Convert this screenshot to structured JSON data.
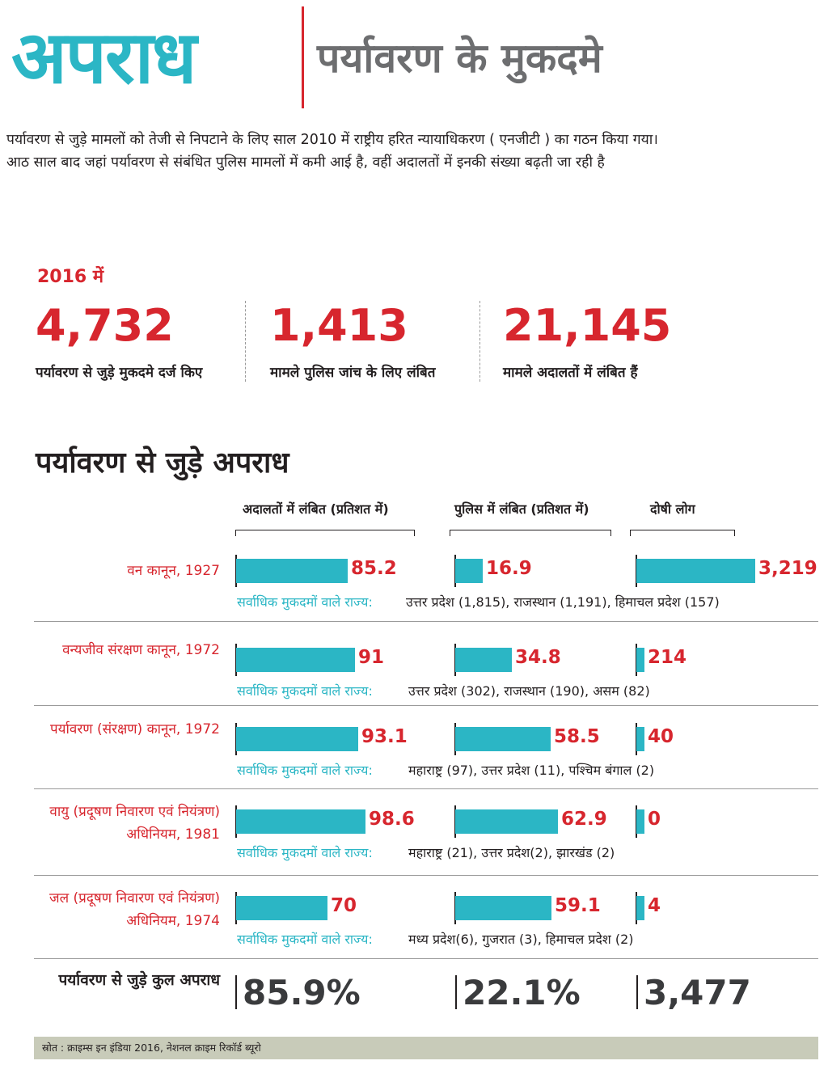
{
  "header": {
    "title": "अपराध",
    "subtitle": "पर्यावरण के मुकदमे"
  },
  "intro": {
    "line1": "पर्यावरण से जुड़े मामलों को तेजी से निपटाने के लिए साल 2010 में राष्ट्रीय हरित न्यायाधिकरण ( एनजीटी ) का गठन किया गया।",
    "line2": "आठ साल बाद जहां पर्यावरण से संबंधित पुलिस मामलों में कमी आई है, वहीं अदालतों में इनकी संख्या बढ़ती जा रही है"
  },
  "summary": {
    "year_label": "2016 में",
    "stats": [
      {
        "value": "4,732",
        "caption": "पर्यावरण से जुड़े मुकदमे दर्ज किए"
      },
      {
        "value": "1,413",
        "caption": "मामले पुलिस जांच के लिए लंबित"
      },
      {
        "value": "21,145",
        "caption": "मामले अदालतों में लंबित हैं"
      }
    ]
  },
  "chart_data": {
    "type": "bar",
    "title": "पर्यावरण से जुड़े अपराध",
    "columns": [
      "अदालतों में लंबित (प्रतिशत में)",
      "पुलिस में लंबित (प्रतिशत में)",
      "दोषी लोग"
    ],
    "states_label": "सर्वाधिक मुकदमों वाले राज्य:",
    "rows": [
      {
        "law": "वन कानून, 1927",
        "court": 85.2,
        "police": 16.9,
        "convicted": 3219,
        "court_label": "85.2",
        "police_label": "16.9",
        "convicted_label": "3,219",
        "states": "उत्तर प्रदेश (1,815),  राजस्थान (1,191),  हिमाचल प्रदेश (157)"
      },
      {
        "law": "वन्यजीव संरक्षण कानून, 1972",
        "court": 91,
        "police": 34.8,
        "convicted": 214,
        "court_label": "91",
        "police_label": "34.8",
        "convicted_label": "214",
        "states": "उत्तर प्रदेश (302), राजस्थान (190), असम (82)"
      },
      {
        "law": "पर्यावरण (संरक्षण) कानून, 1972",
        "court": 93.1,
        "police": 58.5,
        "convicted": 40,
        "court_label": "93.1",
        "police_label": "58.5",
        "convicted_label": "40",
        "states": "महाराष्ट्र (97), उत्तर प्रदेश (11), पश्चिम बंगाल (2)"
      },
      {
        "law": "वायु (प्रदूषण निवारण एवं नियंत्रण) अधिनियम, 1981",
        "court": 98.6,
        "police": 62.9,
        "convicted": 0,
        "court_label": "98.6",
        "police_label": "62.9",
        "convicted_label": "0",
        "states": "महाराष्ट्र (21), उत्तर प्रदेश(2), झारखंड (2)"
      },
      {
        "law": "जल (प्रदूषण निवारण एवं नियंत्रण) अधिनियम, 1974",
        "court": 70,
        "police": 59.1,
        "convicted": 4,
        "court_label": "70",
        "police_label": "59.1",
        "convicted_label": "4",
        "states": "मध्य प्रदेश(6), गुजरात (3), हिमाचल प्रदेश (2)"
      }
    ],
    "total": {
      "label": "पर्यावरण से जुड़े कुल अपराध",
      "court": "85.9%",
      "police": "22.1%",
      "convicted": "3,477"
    }
  },
  "source": "स्रोत : क्राइम्स इन इंडिया 2016, नेशनल क्राइम रिकॉर्ड ब्यूरो",
  "colors": {
    "teal": "#2bb6c5",
    "red": "#d7262e",
    "dark": "#231f20",
    "grey": "#6d6e70"
  }
}
